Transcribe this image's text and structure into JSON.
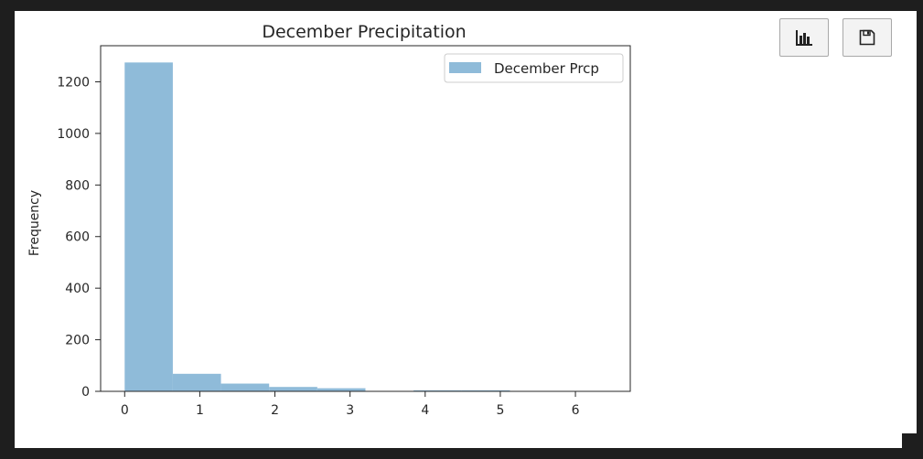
{
  "toolbar": {
    "chart_button_icon": "bar-chart-icon",
    "save_button_icon": "floppy-disk-icon"
  },
  "chart_data": {
    "type": "bar",
    "title": "December Precipitation",
    "xlabel": "",
    "ylabel": "Frequency",
    "bin_edges": [
      0,
      0.641,
      1.282,
      1.923,
      2.564,
      3.205,
      3.846,
      4.487,
      5.128,
      5.769,
      6.41
    ],
    "series": [
      {
        "name": "December Prcp",
        "values": [
          1275,
          68,
          30,
          17,
          12,
          0,
          4,
          4,
          0,
          1
        ],
        "color": "#8fbbd9"
      }
    ],
    "xlim": [
      -0.32,
      6.73
    ],
    "ylim": [
      0,
      1340
    ],
    "xticks": [
      0,
      1,
      2,
      3,
      4,
      5,
      6
    ],
    "yticks": [
      0,
      200,
      400,
      600,
      800,
      1000,
      1200
    ],
    "grid": false,
    "legend_position": "top-right"
  }
}
